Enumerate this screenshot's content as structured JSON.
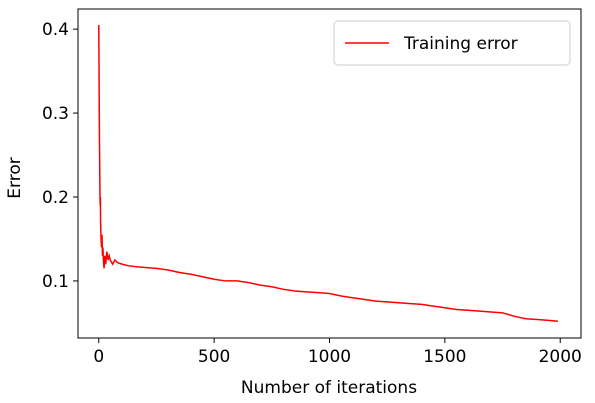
{
  "chart_data": {
    "type": "line",
    "title": "",
    "xlabel": "Number of iterations",
    "ylabel": "Error",
    "xlim": [
      -90,
      2090
    ],
    "ylim": [
      0.032,
      0.424
    ],
    "xticks": [
      0,
      500,
      1000,
      1500,
      2000
    ],
    "xtick_labels": [
      "0",
      "500",
      "1000",
      "1500",
      "2000"
    ],
    "yticks": [
      0.1,
      0.2,
      0.3,
      0.4
    ],
    "ytick_labels": [
      "0.1",
      "0.2",
      "0.3",
      "0.4"
    ],
    "grid": false,
    "legend_position": "top-right",
    "series": [
      {
        "name": "Training error",
        "color": "#ff0000",
        "x": [
          0,
          1,
          2,
          3,
          4,
          5,
          6,
          7,
          8,
          9,
          10,
          12,
          14,
          16,
          18,
          20,
          23,
          26,
          30,
          35,
          40,
          45,
          50,
          60,
          70,
          80,
          100,
          130,
          160,
          200,
          250,
          300,
          350,
          400,
          450,
          500,
          550,
          600,
          650,
          700,
          750,
          800,
          850,
          900,
          950,
          1000,
          1050,
          1100,
          1150,
          1200,
          1250,
          1300,
          1350,
          1400,
          1450,
          1500,
          1550,
          1600,
          1650,
          1700,
          1750,
          1800,
          1850,
          1900,
          1950,
          1990
        ],
        "y": [
          0.405,
          0.36,
          0.31,
          0.27,
          0.24,
          0.21,
          0.19,
          0.2,
          0.17,
          0.16,
          0.15,
          0.14,
          0.155,
          0.13,
          0.14,
          0.125,
          0.115,
          0.13,
          0.12,
          0.135,
          0.125,
          0.13,
          0.125,
          0.12,
          0.125,
          0.122,
          0.12,
          0.118,
          0.117,
          0.116,
          0.115,
          0.113,
          0.11,
          0.108,
          0.105,
          0.102,
          0.1,
          0.1,
          0.098,
          0.095,
          0.093,
          0.09,
          0.088,
          0.087,
          0.086,
          0.085,
          0.082,
          0.08,
          0.078,
          0.076,
          0.075,
          0.074,
          0.073,
          0.072,
          0.07,
          0.068,
          0.066,
          0.065,
          0.064,
          0.063,
          0.062,
          0.058,
          0.055,
          0.054,
          0.053,
          0.052
        ]
      }
    ]
  }
}
